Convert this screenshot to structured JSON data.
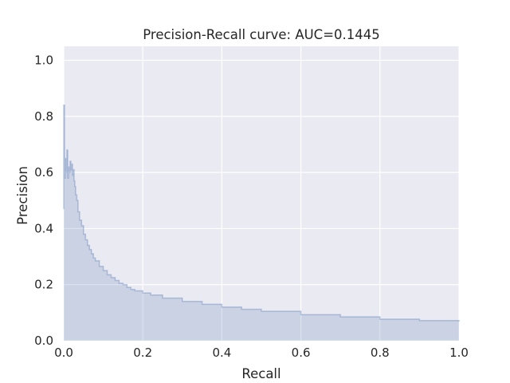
{
  "chart_data": {
    "type": "area",
    "title": "Precision-Recall curve: AUC=0.1445",
    "xlabel": "Recall",
    "ylabel": "Precision",
    "xlim": [
      0.0,
      1.0
    ],
    "ylim": [
      0.0,
      1.05
    ],
    "x_ticks": [
      0.0,
      0.2,
      0.4,
      0.6,
      0.8,
      1.0
    ],
    "x_tick_labels": [
      "0.0",
      "0.2",
      "0.4",
      "0.6",
      "0.8",
      "1.0"
    ],
    "y_ticks": [
      0.0,
      0.2,
      0.4,
      0.6,
      0.8,
      1.0
    ],
    "y_tick_labels": [
      "0.0",
      "0.2",
      "0.4",
      "0.6",
      "0.8",
      "1.0"
    ],
    "grid": true,
    "legend": "none",
    "colors": {
      "plot_background": "#eaeaf2",
      "grid": "#ffffff",
      "line": "#4c72b0",
      "fill": "#4c72b0",
      "text": "#262626"
    },
    "series": [
      {
        "x": [
          0.0,
          0.0,
          0.002,
          0.004,
          0.006,
          0.008,
          0.01,
          0.012,
          0.014,
          0.016,
          0.018,
          0.02,
          0.022,
          0.024,
          0.026,
          0.028,
          0.03,
          0.033,
          0.036,
          0.04,
          0.045,
          0.05,
          0.055,
          0.06,
          0.065,
          0.07,
          0.075,
          0.08,
          0.09,
          0.1,
          0.11,
          0.12,
          0.13,
          0.14,
          0.15,
          0.16,
          0.17,
          0.18,
          0.2,
          0.22,
          0.25,
          0.3,
          0.35,
          0.4,
          0.45,
          0.5,
          0.6,
          0.7,
          0.8,
          0.9,
          1.0
        ],
        "y": [
          0.47,
          0.84,
          0.58,
          0.65,
          0.6,
          0.68,
          0.58,
          0.62,
          0.6,
          0.64,
          0.61,
          0.63,
          0.59,
          0.61,
          0.57,
          0.55,
          0.52,
          0.5,
          0.46,
          0.43,
          0.41,
          0.38,
          0.36,
          0.34,
          0.325,
          0.31,
          0.295,
          0.285,
          0.265,
          0.25,
          0.235,
          0.225,
          0.215,
          0.205,
          0.2,
          0.19,
          0.183,
          0.178,
          0.17,
          0.163,
          0.152,
          0.14,
          0.13,
          0.12,
          0.112,
          0.105,
          0.093,
          0.085,
          0.077,
          0.072,
          0.068
        ]
      }
    ]
  }
}
